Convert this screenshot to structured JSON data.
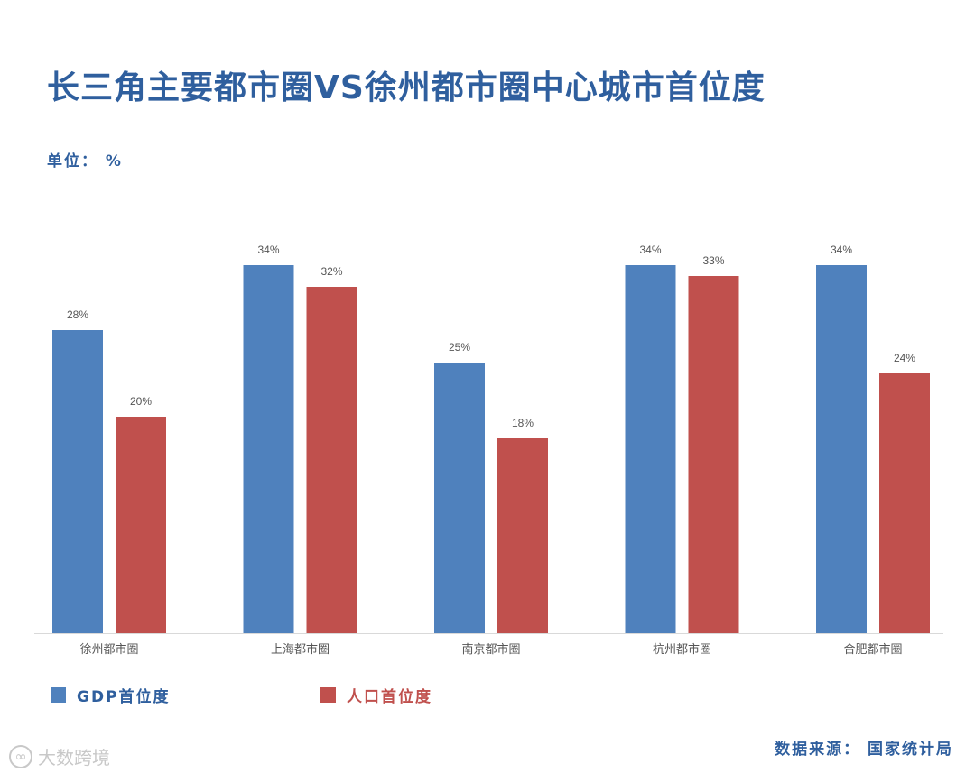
{
  "title": "长三角主要都市圈VS徐州都市圈中心城市首位度",
  "unit_label": "单位： %",
  "source_label": "数据来源： 国家统计局",
  "watermark_text": "大数跨境",
  "legend": {
    "gdp": "GDP首位度",
    "population": "人口首位度"
  },
  "colors": {
    "title": "#2f5f9e",
    "gdp": "#4f81bd",
    "population": "#c0504d",
    "axis": "#d9d9d9",
    "label": "#555555"
  },
  "chart_data": {
    "type": "bar",
    "title": "长三角主要都市圈VS徐州都市圈中心城市首位度",
    "ylabel": "单位： %",
    "xlabel": "",
    "ylim": [
      0,
      34
    ],
    "categories": [
      "徐州都市圈",
      "上海都市圈",
      "南京都市圈",
      "杭州都市圈",
      "合肥都市圈"
    ],
    "series": [
      {
        "name": "GDP首位度",
        "values": [
          28,
          34,
          25,
          34,
          34
        ],
        "labels": [
          "28%",
          "34%",
          "25%",
          "34%",
          "34%"
        ]
      },
      {
        "name": "人口首位度",
        "values": [
          20,
          32,
          18,
          33,
          24
        ],
        "labels": [
          "20%",
          "32%",
          "18%",
          "33%",
          "24%"
        ]
      }
    ]
  }
}
